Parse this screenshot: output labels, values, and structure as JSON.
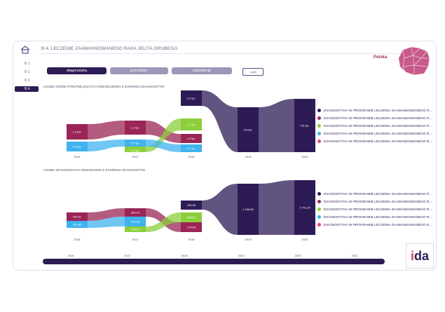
{
  "header": {
    "title": "B.4. LECZENIE ZAAWANSOWANEGO RAKA JELITA GRUBEGO",
    "region": "Polska"
  },
  "sidebar": {
    "items": [
      {
        "label": "B.1."
      },
      {
        "label": "B.2."
      },
      {
        "label": "B.3."
      },
      {
        "label": "B.4."
      }
    ]
  },
  "tabs": [
    {
      "label": "diagnostyka"
    },
    {
      "label": "procedury"
    },
    {
      "label": "substancje"
    }
  ],
  "toggle_icon": "table-chart-toggle-icon",
  "colors": {
    "dark": "#2d1b55",
    "pink": "#e8427c",
    "crimson": "#9b2556",
    "green": "#8ccf3b",
    "blue": "#3fb3ee"
  },
  "legend_label": "DIAGNOSTYKA W PROGRAMIE LECZENIA ZAAWANSOWANEGO R...",
  "chart_data": [
    {
      "type": "area",
      "title": "LICZBA OSÓB OTRZYMUJĄCYCH ŚWIADCZENIA Z ZAKRESU DIAGNOSTYKI",
      "categories": [
        "2016",
        "2017",
        "2018",
        "2019",
        "2020"
      ],
      "series": [
        {
          "color": "#2d1b55",
          "values": [
            null,
            null,
            null,
            null,
            null
          ],
          "labels": [
            "",
            "",
            "2,1 tys.",
            "3,5 tys.",
            "4,6 tys."
          ]
        },
        {
          "color": "#9b2556",
          "values": [
            null,
            null,
            null,
            null,
            null
          ],
          "labels": [
            "1,0 tys.",
            "1,1 tys.",
            "1,0 tys.",
            "",
            ""
          ]
        },
        {
          "color": "#8ccf3b",
          "values": [
            null,
            null,
            null,
            null,
            null
          ],
          "labels": [
            "",
            "",
            "1,7 tys.",
            "",
            ""
          ]
        },
        {
          "color": "#3fb3ee",
          "values": [
            null,
            null,
            null,
            null,
            null
          ],
          "labels": [
            "0,6 tys.",
            "0,7 tys.",
            "0,7 tys.",
            "",
            ""
          ]
        },
        {
          "color": "#e8427c",
          "values": [
            null,
            null,
            null,
            null,
            null
          ],
          "labels": [
            "",
            "",
            "",
            "",
            ""
          ]
        }
      ],
      "extra_labels": [
        {
          "category": "2017",
          "text": "0,6 tys."
        }
      ]
    },
    {
      "type": "area",
      "title": "LICZBA WYKONANYCH ŚWIADCZEŃ Z ZAKRESU DIAGNOSTYKI",
      "categories": [
        "2016",
        "2017",
        "2018",
        "2019",
        "2020"
      ],
      "series": [
        {
          "color": "#2d1b55",
          "labels": [
            "",
            "",
            "426,55",
            "1 436,56",
            "1 751,24"
          ]
        },
        {
          "color": "#9b2556",
          "labels": [
            "402,51",
            "363,24",
            "278,83",
            "",
            ""
          ]
        },
        {
          "color": "#8ccf3b",
          "labels": [
            "",
            "158,19",
            "345,01",
            "",
            ""
          ]
        },
        {
          "color": "#3fb3ee",
          "labels": [
            "191,86",
            "200,55",
            "",
            "",
            ""
          ]
        },
        {
          "color": "#e8427c",
          "labels": [
            "",
            "",
            "",
            "",
            ""
          ]
        }
      ]
    }
  ],
  "timeline": [
    "2016",
    "2017",
    "2018",
    "2019",
    "2020",
    "2021"
  ]
}
